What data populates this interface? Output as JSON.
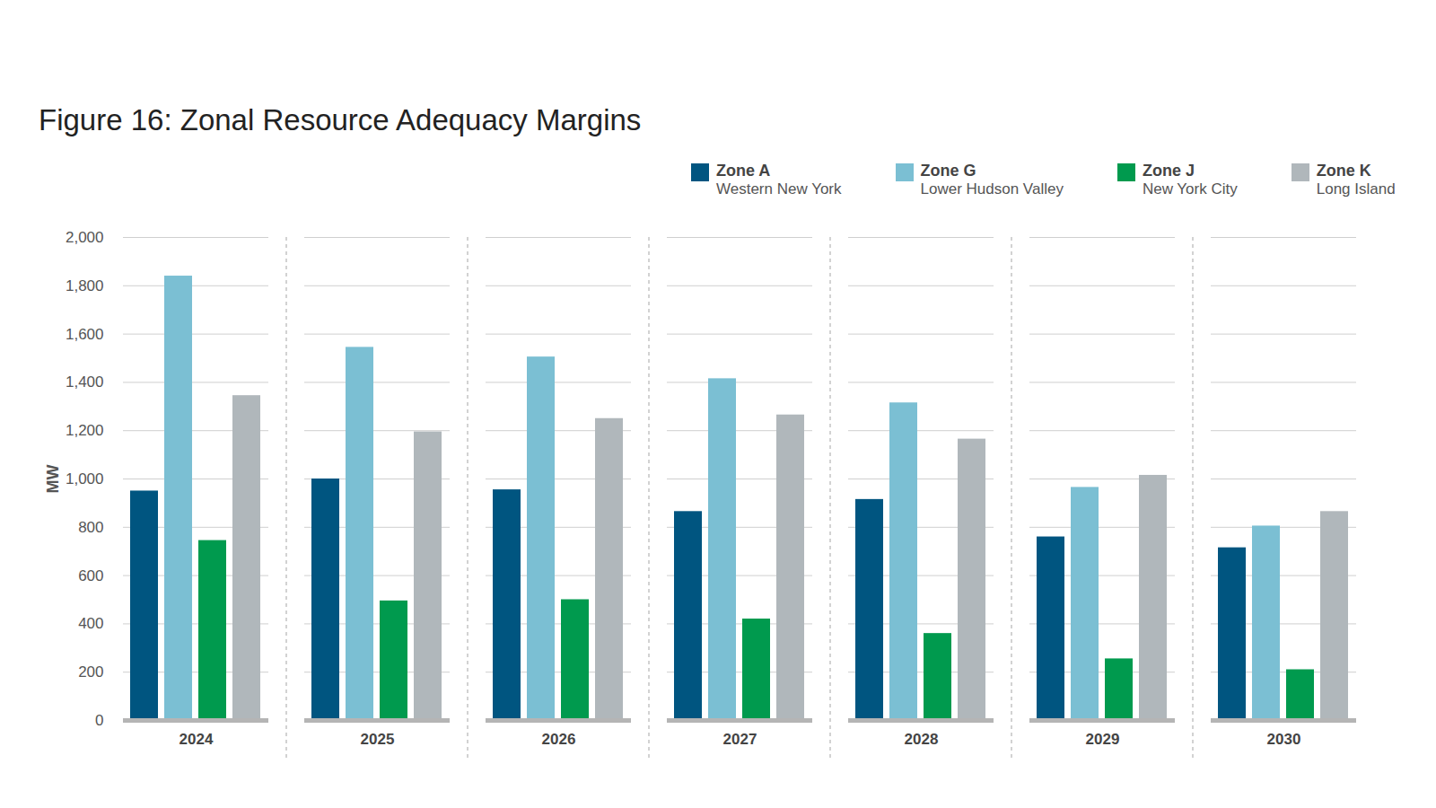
{
  "chart_data": {
    "type": "bar",
    "title": "Figure 16: Zonal Resource Adequacy Margins",
    "y_label": "MW",
    "categories": [
      "2024",
      "2025",
      "2026",
      "2027",
      "2028",
      "2029",
      "2030"
    ],
    "series": [
      {
        "name": "Zone A",
        "description": "Western New York",
        "color": "#005580",
        "values": [
          950,
          1000,
          955,
          865,
          915,
          760,
          715
        ]
      },
      {
        "name": "Zone G",
        "description": "Lower Hudson Valley",
        "color": "#7bbfd3",
        "values": [
          1840,
          1545,
          1505,
          1415,
          1315,
          965,
          805
        ]
      },
      {
        "name": "Zone J",
        "description": "New York City",
        "color": "#009a4e",
        "values": [
          745,
          495,
          500,
          420,
          360,
          255,
          210
        ]
      },
      {
        "name": "Zone K",
        "description": "Long Island",
        "color": "#b0b7bb",
        "values": [
          1345,
          1195,
          1250,
          1265,
          1165,
          1015,
          865
        ]
      }
    ],
    "ylim": [
      0,
      2000
    ],
    "yticks": [
      0,
      200,
      400,
      600,
      800,
      {
        "value": 1000,
        "label": "1,000"
      },
      {
        "value": 1200,
        "label": "1,200"
      },
      {
        "value": 1400,
        "label": "1,400"
      },
      {
        "value": 1600,
        "label": "1,600"
      },
      {
        "value": 1800,
        "label": "1,800"
      },
      {
        "value": 2000,
        "label": "2,000"
      }
    ],
    "grid": true,
    "legend": "top-right"
  }
}
